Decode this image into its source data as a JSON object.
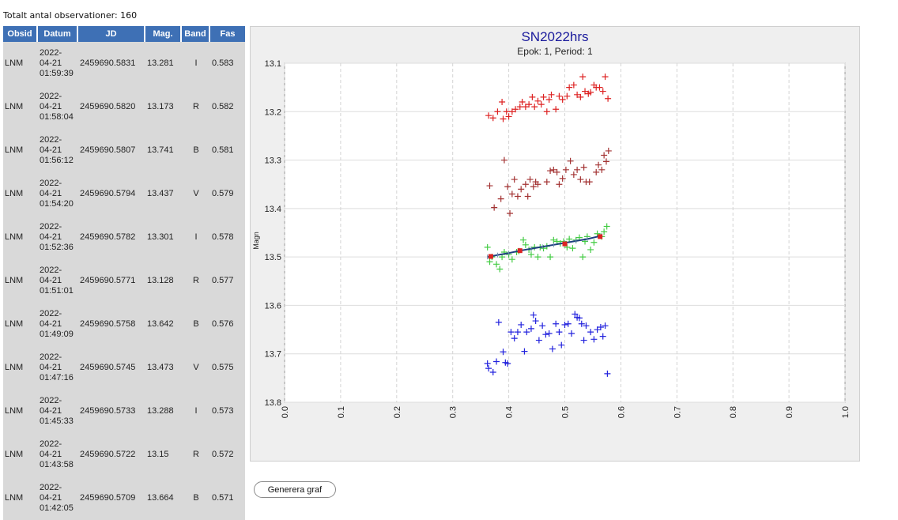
{
  "summary": {
    "total_label": "Totalt antal observationer: 160"
  },
  "table": {
    "headers": [
      "Obsid",
      "Datum",
      "JD",
      "Mag.",
      "Band",
      "Fas"
    ],
    "rows": [
      {
        "obsid": "LNM",
        "date": "2022-",
        "md": "04-21",
        "time": "01:59:39",
        "jd": "2459690.5831",
        "mag": "13.281",
        "band": "I",
        "fas": "0.583"
      },
      {
        "obsid": "LNM",
        "date": "2022-",
        "md": "04-21",
        "time": "01:58:04",
        "jd": "2459690.5820",
        "mag": "13.173",
        "band": "R",
        "fas": "0.582"
      },
      {
        "obsid": "LNM",
        "date": "2022-",
        "md": "04-21",
        "time": "01:56:12",
        "jd": "2459690.5807",
        "mag": "13.741",
        "band": "B",
        "fas": "0.581"
      },
      {
        "obsid": "LNM",
        "date": "2022-",
        "md": "04-21",
        "time": "01:54:20",
        "jd": "2459690.5794",
        "mag": "13.437",
        "band": "V",
        "fas": "0.579"
      },
      {
        "obsid": "LNM",
        "date": "2022-",
        "md": "04-21",
        "time": "01:52:36",
        "jd": "2459690.5782",
        "mag": "13.301",
        "band": "I",
        "fas": "0.578"
      },
      {
        "obsid": "LNM",
        "date": "2022-",
        "md": "04-21",
        "time": "01:51:01",
        "jd": "2459690.5771",
        "mag": "13.128",
        "band": "R",
        "fas": "0.577"
      },
      {
        "obsid": "LNM",
        "date": "2022-",
        "md": "04-21",
        "time": "01:49:09",
        "jd": "2459690.5758",
        "mag": "13.642",
        "band": "B",
        "fas": "0.576"
      },
      {
        "obsid": "LNM",
        "date": "2022-",
        "md": "04-21",
        "time": "01:47:16",
        "jd": "2459690.5745",
        "mag": "13.473",
        "band": "V",
        "fas": "0.575"
      },
      {
        "obsid": "LNM",
        "date": "2022-",
        "md": "04-21",
        "time": "01:45:33",
        "jd": "2459690.5733",
        "mag": "13.288",
        "band": "I",
        "fas": "0.573"
      },
      {
        "obsid": "LNM",
        "date": "2022-",
        "md": "04-21",
        "time": "01:43:58",
        "jd": "2459690.5722",
        "mag": "13.15",
        "band": "R",
        "fas": "0.572"
      },
      {
        "obsid": "LNM",
        "date": "2022-",
        "md": "04-21",
        "time": "01:42:05",
        "jd": "2459690.5709",
        "mag": "13.664",
        "band": "B",
        "fas": "0.571"
      }
    ]
  },
  "chart_data": {
    "type": "scatter",
    "title": "SN2022hrs",
    "subtitle": "Epok: 1, Period: 1",
    "xlabel": "",
    "ylabel": "Magn",
    "xlim": [
      0,
      1
    ],
    "ylim": [
      13.8,
      13.1
    ],
    "y_inverted": true,
    "x_ticks": [
      "0.0",
      "0.1",
      "0.2",
      "0.3",
      "0.4",
      "0.5",
      "0.6",
      "0.7",
      "0.8",
      "0.9",
      "1.0"
    ],
    "y_ticks": [
      "13.1",
      "13.2",
      "13.3",
      "13.4",
      "13.5",
      "13.6",
      "13.7",
      "13.8"
    ],
    "grid": true,
    "series": [
      {
        "color": "#dd2222",
        "points": [
          [
            0.364,
            13.208
          ],
          [
            0.372,
            13.213
          ],
          [
            0.38,
            13.2
          ],
          [
            0.388,
            13.18
          ],
          [
            0.39,
            13.215
          ],
          [
            0.396,
            13.2
          ],
          [
            0.4,
            13.21
          ],
          [
            0.406,
            13.2
          ],
          [
            0.412,
            13.195
          ],
          [
            0.42,
            13.19
          ],
          [
            0.424,
            13.18
          ],
          [
            0.43,
            13.19
          ],
          [
            0.436,
            13.185
          ],
          [
            0.442,
            13.17
          ],
          [
            0.446,
            13.19
          ],
          [
            0.452,
            13.178
          ],
          [
            0.458,
            13.185
          ],
          [
            0.462,
            13.17
          ],
          [
            0.468,
            13.2
          ],
          [
            0.472,
            13.175
          ],
          [
            0.476,
            13.165
          ],
          [
            0.484,
            13.195
          ],
          [
            0.49,
            13.168
          ],
          [
            0.496,
            13.175
          ],
          [
            0.504,
            13.168
          ],
          [
            0.508,
            13.15
          ],
          [
            0.516,
            13.145
          ],
          [
            0.522,
            13.165
          ],
          [
            0.528,
            13.17
          ],
          [
            0.532,
            13.128
          ],
          [
            0.536,
            13.158
          ],
          [
            0.542,
            13.163
          ],
          [
            0.546,
            13.16
          ],
          [
            0.552,
            13.145
          ],
          [
            0.556,
            13.15
          ],
          [
            0.562,
            13.15
          ],
          [
            0.568,
            13.158
          ],
          [
            0.572,
            13.128
          ],
          [
            0.577,
            13.173
          ]
        ]
      },
      {
        "color": "#a33333",
        "points": [
          [
            0.366,
            13.353
          ],
          [
            0.374,
            13.398
          ],
          [
            0.386,
            13.38
          ],
          [
            0.392,
            13.3
          ],
          [
            0.398,
            13.355
          ],
          [
            0.402,
            13.41
          ],
          [
            0.406,
            13.37
          ],
          [
            0.41,
            13.34
          ],
          [
            0.416,
            13.375
          ],
          [
            0.422,
            13.36
          ],
          [
            0.43,
            13.35
          ],
          [
            0.434,
            13.375
          ],
          [
            0.438,
            13.34
          ],
          [
            0.444,
            13.355
          ],
          [
            0.448,
            13.345
          ],
          [
            0.452,
            13.35
          ],
          [
            0.468,
            13.345
          ],
          [
            0.474,
            13.322
          ],
          [
            0.48,
            13.32
          ],
          [
            0.486,
            13.325
          ],
          [
            0.49,
            13.35
          ],
          [
            0.496,
            13.338
          ],
          [
            0.502,
            13.32
          ],
          [
            0.51,
            13.302
          ],
          [
            0.516,
            13.33
          ],
          [
            0.522,
            13.32
          ],
          [
            0.528,
            13.34
          ],
          [
            0.534,
            13.315
          ],
          [
            0.538,
            13.345
          ],
          [
            0.544,
            13.345
          ],
          [
            0.556,
            13.325
          ],
          [
            0.56,
            13.31
          ],
          [
            0.566,
            13.32
          ],
          [
            0.57,
            13.29
          ],
          [
            0.574,
            13.303
          ],
          [
            0.578,
            13.281
          ]
        ]
      },
      {
        "color": "#44cc44",
        "points": [
          [
            0.362,
            13.48
          ],
          [
            0.366,
            13.51
          ],
          [
            0.37,
            13.5
          ],
          [
            0.378,
            13.515
          ],
          [
            0.384,
            13.525
          ],
          [
            0.388,
            13.5
          ],
          [
            0.392,
            13.49
          ],
          [
            0.4,
            13.495
          ],
          [
            0.406,
            13.505
          ],
          [
            0.414,
            13.49
          ],
          [
            0.418,
            13.488
          ],
          [
            0.426,
            13.465
          ],
          [
            0.43,
            13.475
          ],
          [
            0.436,
            13.485
          ],
          [
            0.44,
            13.495
          ],
          [
            0.446,
            13.48
          ],
          [
            0.452,
            13.5
          ],
          [
            0.456,
            13.48
          ],
          [
            0.462,
            13.482
          ],
          [
            0.468,
            13.478
          ],
          [
            0.474,
            13.5
          ],
          [
            0.48,
            13.465
          ],
          [
            0.486,
            13.468
          ],
          [
            0.492,
            13.472
          ],
          [
            0.498,
            13.468
          ],
          [
            0.504,
            13.48
          ],
          [
            0.508,
            13.463
          ],
          [
            0.514,
            13.482
          ],
          [
            0.52,
            13.465
          ],
          [
            0.526,
            13.46
          ],
          [
            0.532,
            13.5
          ],
          [
            0.536,
            13.468
          ],
          [
            0.54,
            13.458
          ],
          [
            0.546,
            13.485
          ],
          [
            0.552,
            13.47
          ],
          [
            0.558,
            13.452
          ],
          [
            0.566,
            13.458
          ],
          [
            0.57,
            13.448
          ],
          [
            0.575,
            13.437
          ]
        ]
      },
      {
        "color": "#2222dd",
        "points": [
          [
            0.362,
            13.72
          ],
          [
            0.364,
            13.73
          ],
          [
            0.372,
            13.738
          ],
          [
            0.378,
            13.716
          ],
          [
            0.382,
            13.635
          ],
          [
            0.39,
            13.696
          ],
          [
            0.394,
            13.718
          ],
          [
            0.398,
            13.72
          ],
          [
            0.404,
            13.655
          ],
          [
            0.41,
            13.668
          ],
          [
            0.416,
            13.655
          ],
          [
            0.422,
            13.64
          ],
          [
            0.428,
            13.695
          ],
          [
            0.432,
            13.655
          ],
          [
            0.44,
            13.648
          ],
          [
            0.444,
            13.62
          ],
          [
            0.448,
            13.632
          ],
          [
            0.454,
            13.672
          ],
          [
            0.46,
            13.642
          ],
          [
            0.466,
            13.66
          ],
          [
            0.472,
            13.658
          ],
          [
            0.478,
            13.69
          ],
          [
            0.484,
            13.638
          ],
          [
            0.49,
            13.655
          ],
          [
            0.494,
            13.682
          ],
          [
            0.5,
            13.64
          ],
          [
            0.506,
            13.638
          ],
          [
            0.512,
            13.658
          ],
          [
            0.518,
            13.618
          ],
          [
            0.522,
            13.625
          ],
          [
            0.526,
            13.626
          ],
          [
            0.53,
            13.638
          ],
          [
            0.534,
            13.672
          ],
          [
            0.538,
            13.642
          ],
          [
            0.546,
            13.655
          ],
          [
            0.552,
            13.67
          ],
          [
            0.558,
            13.65
          ],
          [
            0.564,
            13.645
          ],
          [
            0.568,
            13.664
          ],
          [
            0.572,
            13.642
          ],
          [
            0.576,
            13.741
          ]
        ]
      }
    ],
    "fit": {
      "line_color": "#1f4080",
      "tick_color": "#6d8fb0",
      "x": [
        0.362,
        0.38,
        0.4,
        0.42,
        0.44,
        0.46,
        0.48,
        0.5,
        0.52,
        0.54,
        0.566
      ],
      "y": [
        13.5,
        13.496,
        13.492,
        13.487,
        13.483,
        13.479,
        13.475,
        13.471,
        13.467,
        13.463,
        13.456
      ],
      "anchors_color": "#dd2222",
      "anchors": [
        [
          0.368,
          13.499
        ],
        [
          0.42,
          13.487
        ],
        [
          0.5,
          13.473
        ],
        [
          0.563,
          13.458
        ]
      ]
    }
  },
  "controls": {
    "generate_label": "Generera graf"
  }
}
